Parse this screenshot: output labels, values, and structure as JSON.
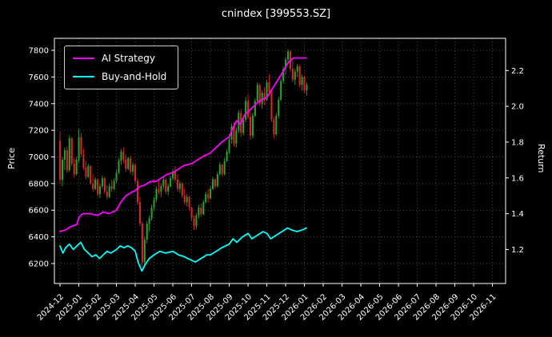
{
  "title": "cnindex [399553.SZ]",
  "legend": {
    "items": [
      {
        "label": "AI Strategy",
        "color": "#ff00ff"
      },
      {
        "label": "Buy-and-Hold",
        "color": "#00ffff"
      }
    ]
  },
  "chart_data": {
    "type": "candlestick+line",
    "title": "cnindex [399553.SZ]",
    "grid": "dotted",
    "legend_position": "upper-left",
    "x_axis": {
      "labels": [
        "2024-12",
        "2025-01",
        "2025-02",
        "2025-03",
        "2025-04",
        "2025-05",
        "2025-06",
        "2025-07",
        "2025-08",
        "2025-09",
        "2025-10",
        "2025-11",
        "2025-12",
        "2026-01",
        "2026-02",
        "2026-03",
        "2026-04",
        "2026-05",
        "2026-06",
        "2026-07",
        "2026-08",
        "2026-09",
        "2026-10",
        "2026-11"
      ],
      "lim": [
        -0.3,
        23.7
      ],
      "unit": "month-index"
    },
    "price_axis": {
      "label": "Price",
      "ticks": [
        6200,
        6400,
        6600,
        6800,
        7000,
        7200,
        7400,
        7600,
        7800
      ],
      "lim": [
        6050,
        7890
      ]
    },
    "return_axis": {
      "label": "Return",
      "ticks": [
        1.2,
        1.4,
        1.6,
        1.8,
        2.0,
        2.2
      ],
      "lim": [
        1.01,
        2.38
      ]
    },
    "colors": {
      "up": "#2ca02c",
      "down": "#d62728",
      "grid": "#4a4a4a",
      "spine": "#ffffff",
      "background": "#000000",
      "text": "#ffffff"
    },
    "candles": {
      "x_start": 0.0,
      "x_step": 0.125,
      "ohlc": [
        [
          7120,
          7190,
          6800,
          6830
        ],
        [
          6830,
          7000,
          6780,
          6980
        ],
        [
          6980,
          7070,
          6900,
          7050
        ],
        [
          7050,
          7080,
          6880,
          6900
        ],
        [
          6900,
          7160,
          6890,
          7140
        ],
        [
          7140,
          7150,
          6930,
          6950
        ],
        [
          6950,
          6990,
          6850,
          6870
        ],
        [
          6870,
          7000,
          6860,
          6980
        ],
        [
          6980,
          7210,
          6960,
          7150
        ],
        [
          7150,
          7180,
          7000,
          7020
        ],
        [
          7020,
          7060,
          6900,
          6920
        ],
        [
          6920,
          6970,
          6830,
          6850
        ],
        [
          6850,
          6950,
          6840,
          6930
        ],
        [
          6930,
          6940,
          6790,
          6800
        ],
        [
          6800,
          6870,
          6740,
          6760
        ],
        [
          6760,
          6850,
          6750,
          6830
        ],
        [
          6830,
          6840,
          6700,
          6720
        ],
        [
          6720,
          6800,
          6690,
          6780
        ],
        [
          6780,
          6860,
          6760,
          6840
        ],
        [
          6840,
          6850,
          6720,
          6740
        ],
        [
          6740,
          6790,
          6680,
          6700
        ],
        [
          6700,
          6800,
          6690,
          6780
        ],
        [
          6780,
          6830,
          6740,
          6760
        ],
        [
          6760,
          6840,
          6750,
          6820
        ],
        [
          6820,
          6900,
          6800,
          6880
        ],
        [
          6880,
          6990,
          6870,
          6970
        ],
        [
          6970,
          7060,
          6940,
          7040
        ],
        [
          7040,
          7070,
          6950,
          6980
        ],
        [
          6980,
          7020,
          6890,
          6910
        ],
        [
          6910,
          7000,
          6900,
          6990
        ],
        [
          6990,
          7010,
          6870,
          6890
        ],
        [
          6890,
          6960,
          6860,
          6940
        ],
        [
          6940,
          6950,
          6800,
          6820
        ],
        [
          6820,
          6840,
          6640,
          6660
        ],
        [
          6660,
          6700,
          6480,
          6500
        ],
        [
          6500,
          6520,
          6170,
          6210
        ],
        [
          6210,
          6400,
          6180,
          6380
        ],
        [
          6380,
          6520,
          6350,
          6500
        ],
        [
          6500,
          6560,
          6440,
          6540
        ],
        [
          6540,
          6640,
          6520,
          6620
        ],
        [
          6620,
          6700,
          6600,
          6680
        ],
        [
          6680,
          6780,
          6660,
          6760
        ],
        [
          6760,
          6820,
          6720,
          6740
        ],
        [
          6740,
          6800,
          6700,
          6780
        ],
        [
          6780,
          6850,
          6760,
          6830
        ],
        [
          6830,
          6840,
          6720,
          6740
        ],
        [
          6740,
          6800,
          6710,
          6780
        ],
        [
          6780,
          6860,
          6770,
          6840
        ],
        [
          6840,
          6910,
          6820,
          6890
        ],
        [
          6890,
          6930,
          6810,
          6830
        ],
        [
          6830,
          6870,
          6740,
          6760
        ],
        [
          6760,
          6820,
          6730,
          6800
        ],
        [
          6800,
          6810,
          6690,
          6710
        ],
        [
          6710,
          6760,
          6640,
          6660
        ],
        [
          6660,
          6720,
          6630,
          6700
        ],
        [
          6700,
          6710,
          6600,
          6620
        ],
        [
          6620,
          6630,
          6520,
          6540
        ],
        [
          6540,
          6560,
          6450,
          6480
        ],
        [
          6480,
          6580,
          6460,
          6560
        ],
        [
          6560,
          6640,
          6540,
          6620
        ],
        [
          6620,
          6650,
          6550,
          6570
        ],
        [
          6570,
          6680,
          6560,
          6660
        ],
        [
          6660,
          6740,
          6650,
          6720
        ],
        [
          6720,
          6760,
          6660,
          6690
        ],
        [
          6690,
          6780,
          6680,
          6760
        ],
        [
          6760,
          6850,
          6750,
          6830
        ],
        [
          6830,
          6840,
          6760,
          6780
        ],
        [
          6780,
          6890,
          6770,
          6870
        ],
        [
          6870,
          6960,
          6860,
          6940
        ],
        [
          6940,
          6950,
          6850,
          6870
        ],
        [
          6870,
          6990,
          6860,
          6970
        ],
        [
          6970,
          7060,
          6960,
          7040
        ],
        [
          7040,
          7150,
          7020,
          7130
        ],
        [
          7130,
          7250,
          7100,
          7230
        ],
        [
          7230,
          7260,
          7080,
          7100
        ],
        [
          7100,
          7220,
          7070,
          7200
        ],
        [
          7200,
          7350,
          7180,
          7330
        ],
        [
          7330,
          7360,
          7150,
          7180
        ],
        [
          7180,
          7300,
          7160,
          7280
        ],
        [
          7280,
          7450,
          7260,
          7420
        ],
        [
          7420,
          7470,
          7280,
          7300
        ],
        [
          7300,
          7340,
          7130,
          7160
        ],
        [
          7160,
          7330,
          7140,
          7310
        ],
        [
          7310,
          7440,
          7300,
          7420
        ],
        [
          7420,
          7560,
          7400,
          7540
        ],
        [
          7540,
          7550,
          7380,
          7400
        ],
        [
          7400,
          7500,
          7360,
          7480
        ],
        [
          7480,
          7520,
          7390,
          7430
        ],
        [
          7430,
          7580,
          7420,
          7560
        ],
        [
          7560,
          7620,
          7460,
          7490
        ],
        [
          7490,
          7500,
          7260,
          7280
        ],
        [
          7280,
          7300,
          7140,
          7170
        ],
        [
          7170,
          7330,
          7160,
          7310
        ],
        [
          7310,
          7450,
          7290,
          7430
        ],
        [
          7430,
          7590,
          7420,
          7570
        ],
        [
          7570,
          7680,
          7550,
          7660
        ],
        [
          7660,
          7750,
          7620,
          7730
        ],
        [
          7730,
          7810,
          7700,
          7790
        ],
        [
          7790,
          7800,
          7640,
          7660
        ],
        [
          7660,
          7720,
          7560,
          7580
        ],
        [
          7580,
          7660,
          7540,
          7640
        ],
        [
          7640,
          7700,
          7600,
          7680
        ],
        [
          7680,
          7690,
          7520,
          7540
        ],
        [
          7540,
          7620,
          7500,
          7600
        ],
        [
          7600,
          7610,
          7480,
          7500
        ],
        [
          7500,
          7560,
          7460,
          7540
        ]
      ]
    },
    "series": [
      {
        "name": "AI Strategy",
        "axis": "return",
        "color": "#ff00ff",
        "points": [
          [
            0,
            1.3
          ],
          [
            0.3,
            1.31
          ],
          [
            0.6,
            1.33
          ],
          [
            0.9,
            1.34
          ],
          [
            1.0,
            1.38
          ],
          [
            1.2,
            1.4
          ],
          [
            1.6,
            1.4
          ],
          [
            2.0,
            1.39
          ],
          [
            2.3,
            1.41
          ],
          [
            2.6,
            1.4
          ],
          [
            3.0,
            1.42
          ],
          [
            3.2,
            1.46
          ],
          [
            3.5,
            1.5
          ],
          [
            3.8,
            1.52
          ],
          [
            4.0,
            1.53
          ],
          [
            4.2,
            1.55
          ],
          [
            4.5,
            1.56
          ],
          [
            4.8,
            1.58
          ],
          [
            5.1,
            1.58
          ],
          [
            5.4,
            1.6
          ],
          [
            5.7,
            1.62
          ],
          [
            6.0,
            1.63
          ],
          [
            6.3,
            1.65
          ],
          [
            6.6,
            1.67
          ],
          [
            7.0,
            1.68
          ],
          [
            7.3,
            1.7
          ],
          [
            7.6,
            1.72
          ],
          [
            8.0,
            1.74
          ],
          [
            8.3,
            1.77
          ],
          [
            8.6,
            1.8
          ],
          [
            9.0,
            1.83
          ],
          [
            9.2,
            1.88
          ],
          [
            9.4,
            1.92
          ],
          [
            9.6,
            1.9
          ],
          [
            9.8,
            1.95
          ],
          [
            10.0,
            1.97
          ],
          [
            10.3,
            2.0
          ],
          [
            10.6,
            2.03
          ],
          [
            11.0,
            2.05
          ],
          [
            11.3,
            2.1
          ],
          [
            11.6,
            2.15
          ],
          [
            11.9,
            2.2
          ],
          [
            12.1,
            2.24
          ],
          [
            12.4,
            2.27
          ],
          [
            12.8,
            2.27
          ],
          [
            13.1,
            2.27
          ]
        ]
      },
      {
        "name": "Buy-and-Hold",
        "axis": "return",
        "color": "#00ffff",
        "points": [
          [
            0,
            1.22
          ],
          [
            0.15,
            1.18
          ],
          [
            0.3,
            1.21
          ],
          [
            0.5,
            1.23
          ],
          [
            0.7,
            1.2
          ],
          [
            0.9,
            1.22
          ],
          [
            1.1,
            1.24
          ],
          [
            1.3,
            1.2
          ],
          [
            1.5,
            1.18
          ],
          [
            1.7,
            1.16
          ],
          [
            1.9,
            1.17
          ],
          [
            2.1,
            1.15
          ],
          [
            2.3,
            1.17
          ],
          [
            2.5,
            1.19
          ],
          [
            2.7,
            1.18
          ],
          [
            3.0,
            1.2
          ],
          [
            3.2,
            1.22
          ],
          [
            3.4,
            1.21
          ],
          [
            3.6,
            1.22
          ],
          [
            3.8,
            1.21
          ],
          [
            4.0,
            1.19
          ],
          [
            4.15,
            1.13
          ],
          [
            4.35,
            1.08
          ],
          [
            4.55,
            1.12
          ],
          [
            4.75,
            1.15
          ],
          [
            5.0,
            1.17
          ],
          [
            5.3,
            1.19
          ],
          [
            5.6,
            1.18
          ],
          [
            6.0,
            1.19
          ],
          [
            6.3,
            1.17
          ],
          [
            6.6,
            1.16
          ],
          [
            7.0,
            1.14
          ],
          [
            7.2,
            1.13
          ],
          [
            7.5,
            1.15
          ],
          [
            7.8,
            1.17
          ],
          [
            8.0,
            1.17
          ],
          [
            8.3,
            1.19
          ],
          [
            8.6,
            1.21
          ],
          [
            9.0,
            1.23
          ],
          [
            9.2,
            1.26
          ],
          [
            9.4,
            1.24
          ],
          [
            9.7,
            1.27
          ],
          [
            10.0,
            1.29
          ],
          [
            10.2,
            1.26
          ],
          [
            10.5,
            1.28
          ],
          [
            10.8,
            1.3
          ],
          [
            11.0,
            1.29
          ],
          [
            11.2,
            1.26
          ],
          [
            11.5,
            1.28
          ],
          [
            11.8,
            1.3
          ],
          [
            12.1,
            1.32
          ],
          [
            12.3,
            1.31
          ],
          [
            12.6,
            1.3
          ],
          [
            12.9,
            1.31
          ],
          [
            13.1,
            1.32
          ]
        ]
      }
    ]
  }
}
